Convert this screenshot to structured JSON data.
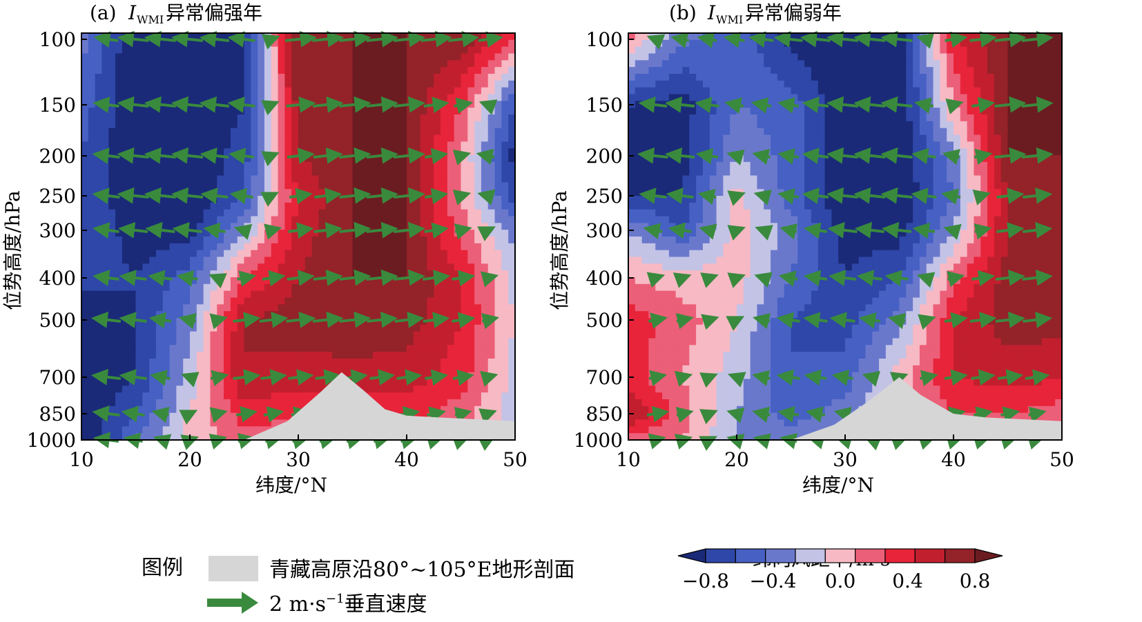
{
  "figure": {
    "panels": [
      {
        "label": "(a)",
        "index_main": "I",
        "index_sub": "WMI",
        "title_suffix": "异常偏强年"
      },
      {
        "label": "(b)",
        "index_main": "I",
        "index_sub": "WMI",
        "title_suffix": "异常偏弱年"
      }
    ],
    "legend": {
      "title": "图例",
      "terrain_label": "青藏高原沿80°~105°E地形剖面",
      "arrow_label": "2 m·s",
      "arrow_sup": "−1",
      "arrow_suffix": "垂直速度"
    },
    "colorbar": {
      "title": "纬向风距平/m·s",
      "title_sup": "−1",
      "tick_labels": [
        "−0.8",
        "−0.4",
        "0.0",
        "0.4",
        "0.8"
      ],
      "tick_values": [
        -0.8,
        -0.4,
        0.0,
        0.4,
        0.8
      ],
      "levels": [
        -1.0,
        -0.8,
        -0.6,
        -0.4,
        -0.2,
        0.0,
        0.2,
        0.4,
        0.6,
        0.8,
        1.0
      ],
      "colors": [
        "#1a2a78",
        "#2e47a8",
        "#4660c4",
        "#6a78cc",
        "#c3c3e6",
        "#f7b9c4",
        "#ec5f78",
        "#e8243a",
        "#c21f2e",
        "#942229",
        "#6b1c21"
      ]
    },
    "terrain_color": "#d6d6d6",
    "arrow_color": "#3a8a3e"
  },
  "chart_data": [
    {
      "type": "contourf+quiver",
      "panel": "(a)",
      "xlabel": "纬度/°N",
      "ylabel": "位势高度/hPa",
      "x_ticks": [
        10,
        20,
        30,
        40,
        50
      ],
      "y_ticks": [
        100,
        150,
        200,
        250,
        300,
        400,
        500,
        700,
        850,
        1000
      ],
      "xlim": [
        10,
        50
      ],
      "ylim": [
        1000,
        100
      ],
      "lat": [
        10,
        15,
        20,
        25,
        30,
        35,
        40,
        45,
        50
      ],
      "levels_hPa": [
        100,
        150,
        200,
        250,
        300,
        400,
        500,
        700,
        850,
        1000
      ],
      "u_anomaly": [
        [
          -0.3,
          -1.0,
          -1.0,
          -0.8,
          1.0,
          1.0,
          1.0,
          1.0,
          0.5
        ],
        [
          -0.5,
          -1.0,
          -1.0,
          -0.8,
          0.9,
          1.0,
          1.0,
          0.4,
          -0.6
        ],
        [
          -0.6,
          -1.0,
          -1.0,
          -0.7,
          0.8,
          1.0,
          1.0,
          0.2,
          -0.9
        ],
        [
          -0.6,
          -1.0,
          -1.0,
          -0.6,
          0.6,
          1.0,
          1.0,
          0.2,
          -0.7
        ],
        [
          -0.6,
          -0.9,
          -0.9,
          -0.2,
          0.7,
          1.0,
          1.0,
          0.3,
          -0.3
        ],
        [
          -0.7,
          -0.8,
          -0.5,
          0.4,
          0.8,
          1.0,
          1.0,
          0.6,
          -0.1
        ],
        [
          -1.0,
          -0.8,
          -0.3,
          0.8,
          0.9,
          1.0,
          0.9,
          0.6,
          0.0
        ],
        [
          -1.0,
          -0.8,
          -0.1,
          0.8,
          0.7,
          0.7,
          0.7,
          0.5,
          -0.1
        ],
        [
          -1.0,
          -0.6,
          0.0,
          0.5,
          0.4,
          0.4,
          0.5,
          0.3,
          -0.1
        ],
        [
          -1.0,
          -0.4,
          0.1,
          0.3,
          0.3,
          0.3,
          0.3,
          0.1,
          -0.1
        ]
      ],
      "terrain_profile": [
        [
          10,
          1000
        ],
        [
          25,
          1000
        ],
        [
          29,
          890
        ],
        [
          32,
          760
        ],
        [
          34,
          680
        ],
        [
          36,
          750
        ],
        [
          38,
          830
        ],
        [
          40,
          860
        ],
        [
          43,
          870
        ],
        [
          50,
          890
        ],
        [
          50,
          1000
        ]
      ]
    },
    {
      "type": "contourf+quiver",
      "panel": "(b)",
      "xlabel": "纬度/°N",
      "ylabel": "位势高度/hPa",
      "x_ticks": [
        10,
        20,
        30,
        40,
        50
      ],
      "y_ticks": [
        100,
        150,
        200,
        250,
        300,
        400,
        500,
        700,
        850,
        1000
      ],
      "xlim": [
        10,
        50
      ],
      "ylim": [
        1000,
        100
      ],
      "lat": [
        10,
        15,
        20,
        25,
        30,
        35,
        40,
        45,
        50
      ],
      "levels_hPa": [
        100,
        150,
        200,
        250,
        300,
        400,
        500,
        700,
        850,
        1000
      ],
      "u_anomaly": [
        [
          0.3,
          -0.3,
          -0.5,
          -0.9,
          -1.0,
          -1.0,
          0.6,
          1.0,
          1.0
        ],
        [
          -0.8,
          -0.9,
          -0.4,
          -0.5,
          -1.0,
          -1.0,
          0.2,
          1.0,
          1.0
        ],
        [
          -1.0,
          -0.9,
          -0.2,
          -0.5,
          -1.0,
          -1.0,
          -0.3,
          1.0,
          1.0
        ],
        [
          -0.8,
          -0.8,
          0.1,
          -0.5,
          -1.0,
          -1.0,
          -0.4,
          0.8,
          1.0
        ],
        [
          -0.2,
          -0.6,
          0.1,
          -0.3,
          -0.9,
          -0.9,
          -0.2,
          0.8,
          1.0
        ],
        [
          0.2,
          0.1,
          0.1,
          -0.4,
          -0.8,
          -0.6,
          0.3,
          0.9,
          1.0
        ],
        [
          0.5,
          0.3,
          0.0,
          -0.6,
          -0.7,
          -0.3,
          0.6,
          0.9,
          0.9
        ],
        [
          0.5,
          0.2,
          -0.1,
          -0.6,
          -0.5,
          0.1,
          0.6,
          0.7,
          0.6
        ],
        [
          0.8,
          0.3,
          -0.2,
          -0.5,
          -0.3,
          0.1,
          0.4,
          0.4,
          0.3
        ],
        [
          0.3,
          0.2,
          -0.2,
          -0.3,
          -0.2,
          0.1,
          0.2,
          0.2,
          0.2
        ]
      ],
      "terrain_profile": [
        [
          10,
          1000
        ],
        [
          25,
          1000
        ],
        [
          29,
          910
        ],
        [
          32,
          800
        ],
        [
          35,
          700
        ],
        [
          37,
          770
        ],
        [
          40,
          850
        ],
        [
          43,
          870
        ],
        [
          50,
          890
        ],
        [
          50,
          1000
        ]
      ]
    }
  ]
}
